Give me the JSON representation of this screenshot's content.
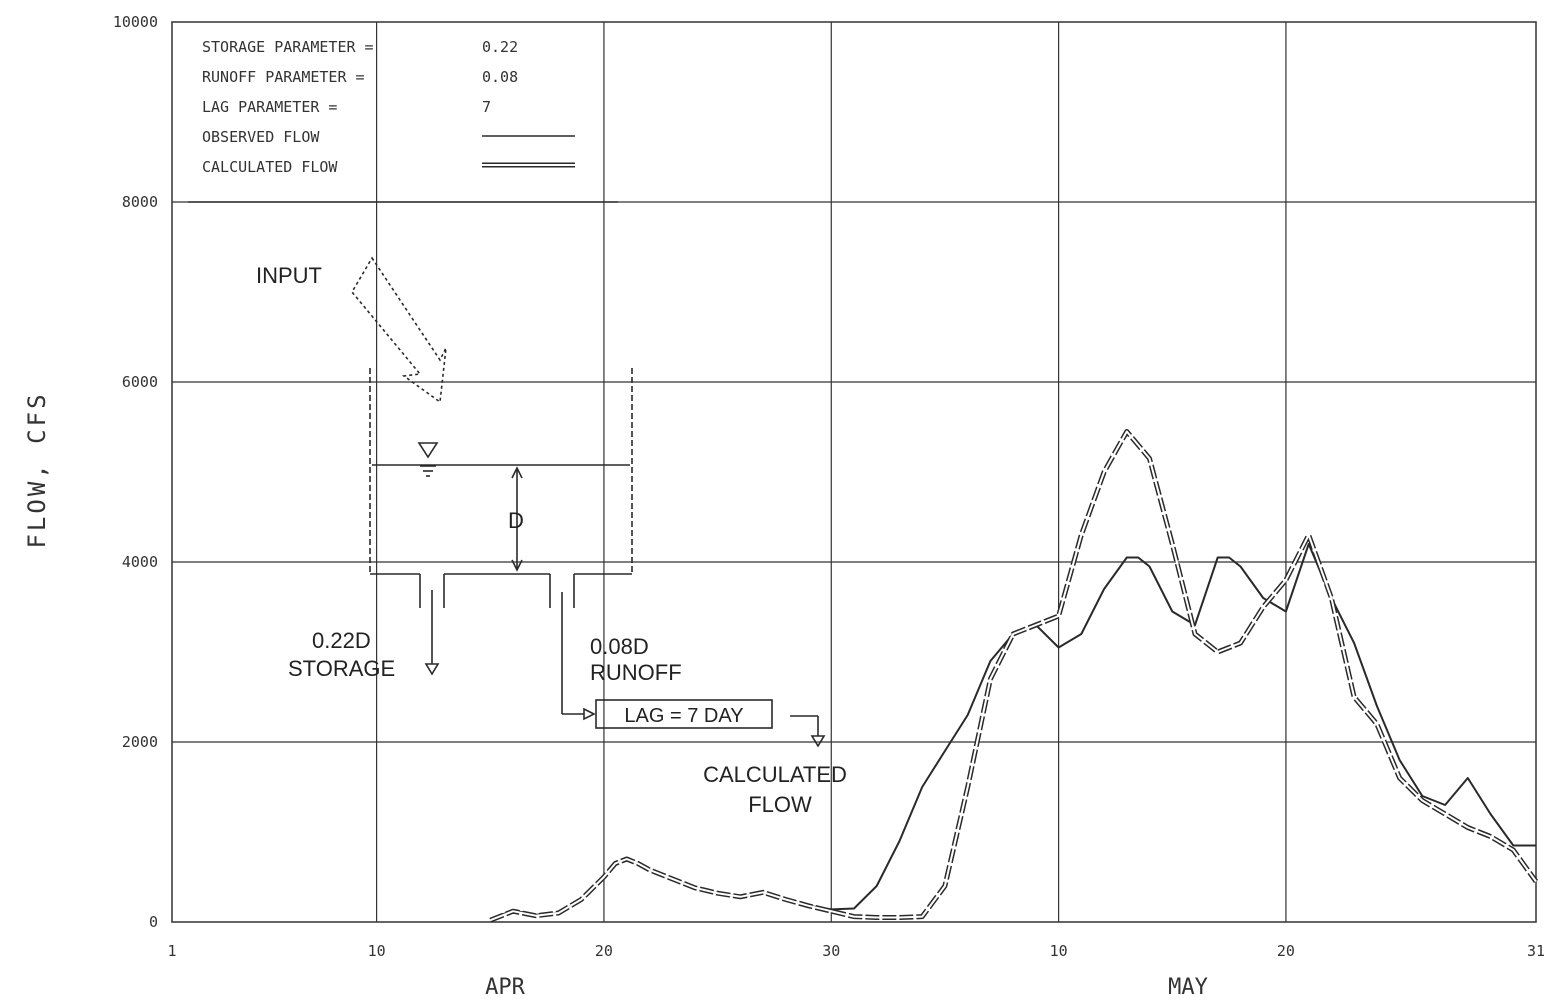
{
  "chart_data": {
    "type": "line",
    "ylabel": "FLOW, CFS",
    "xlabel": "",
    "ylim": [
      0,
      10000
    ],
    "yticks": [
      0,
      2000,
      4000,
      6000,
      8000,
      10000
    ],
    "ytick_labels": [
      "0",
      "2000",
      "4000",
      "6000",
      "8000",
      "10000"
    ],
    "x_tick_labels": [
      "1",
      "10",
      "20",
      "30",
      "10",
      "20",
      "31"
    ],
    "month_labels": [
      "APR",
      "MAY"
    ],
    "grid": true,
    "legend_lines": [
      {
        "label": "STORAGE PARAMETER =",
        "value": "0.22"
      },
      {
        "label": "RUNOFF PARAMETER =",
        "value": "0.08"
      },
      {
        "label": "LAG PARAMETER =",
        "value": "7"
      },
      {
        "label": "OBSERVED FLOW",
        "value": ""
      },
      {
        "label": "CALCULATED FLOW",
        "value": ""
      }
    ],
    "series": [
      {
        "name": "OBSERVED FLOW",
        "style": "solid",
        "x": [
          15,
          16,
          17,
          18,
          19,
          20,
          20.5,
          21,
          21.5,
          22,
          23,
          24,
          25,
          26,
          27,
          28,
          29,
          30,
          31,
          32,
          33,
          34,
          35,
          36,
          37,
          38,
          39,
          40,
          41,
          42,
          43,
          43.5,
          44,
          45,
          46,
          47,
          47.5,
          48,
          49,
          50,
          51,
          52,
          53,
          54,
          55,
          56,
          57,
          58,
          59,
          60,
          61
        ],
        "y": [
          30,
          130,
          80,
          100,
          250,
          500,
          650,
          700,
          650,
          580,
          480,
          380,
          320,
          280,
          330,
          250,
          180,
          140,
          150,
          400,
          900,
          1500,
          1900,
          2300,
          2900,
          3200,
          3300,
          3050,
          3200,
          3700,
          4050,
          4050,
          3950,
          3450,
          3300,
          4050,
          4050,
          3950,
          3600,
          3450,
          4200,
          3600,
          3100,
          2400,
          1800,
          1400,
          1300,
          1600,
          1200,
          850,
          850
        ]
      },
      {
        "name": "CALCULATED FLOW",
        "style": "double",
        "x": [
          15,
          16,
          17,
          18,
          19,
          20,
          20.5,
          21,
          21.5,
          22,
          23,
          24,
          25,
          26,
          27,
          28,
          29,
          30,
          31,
          32,
          33,
          34,
          35,
          36,
          37,
          38,
          39,
          40,
          41,
          42,
          43,
          44,
          45,
          46,
          47,
          48,
          49,
          50,
          51,
          52,
          53,
          54,
          55,
          56,
          57,
          58,
          59,
          60,
          61
        ],
        "y": [
          20,
          120,
          70,
          100,
          250,
          500,
          650,
          700,
          650,
          580,
          480,
          380,
          320,
          280,
          330,
          250,
          180,
          120,
          60,
          50,
          50,
          60,
          400,
          1500,
          2700,
          3200,
          3300,
          3400,
          4300,
          5000,
          5450,
          5150,
          4200,
          3200,
          3000,
          3100,
          3500,
          3800,
          4300,
          3600,
          2500,
          2200,
          1600,
          1350,
          1200,
          1050,
          950,
          800,
          450
        ]
      }
    ]
  },
  "diagram": {
    "input_label": "INPUT",
    "depth_label": "D",
    "storage_coef": "0.22D",
    "storage_label": "STORAGE",
    "runoff_coef": "0.08D",
    "runoff_label": "RUNOFF",
    "lag_box": "LAG = 7 DAY",
    "calculated_label_1": "CALCULATED",
    "calculated_label_2": "FLOW"
  },
  "colors": {
    "ink": "#2a2a2a",
    "grid": "#333333",
    "paper": "#ffffff"
  }
}
